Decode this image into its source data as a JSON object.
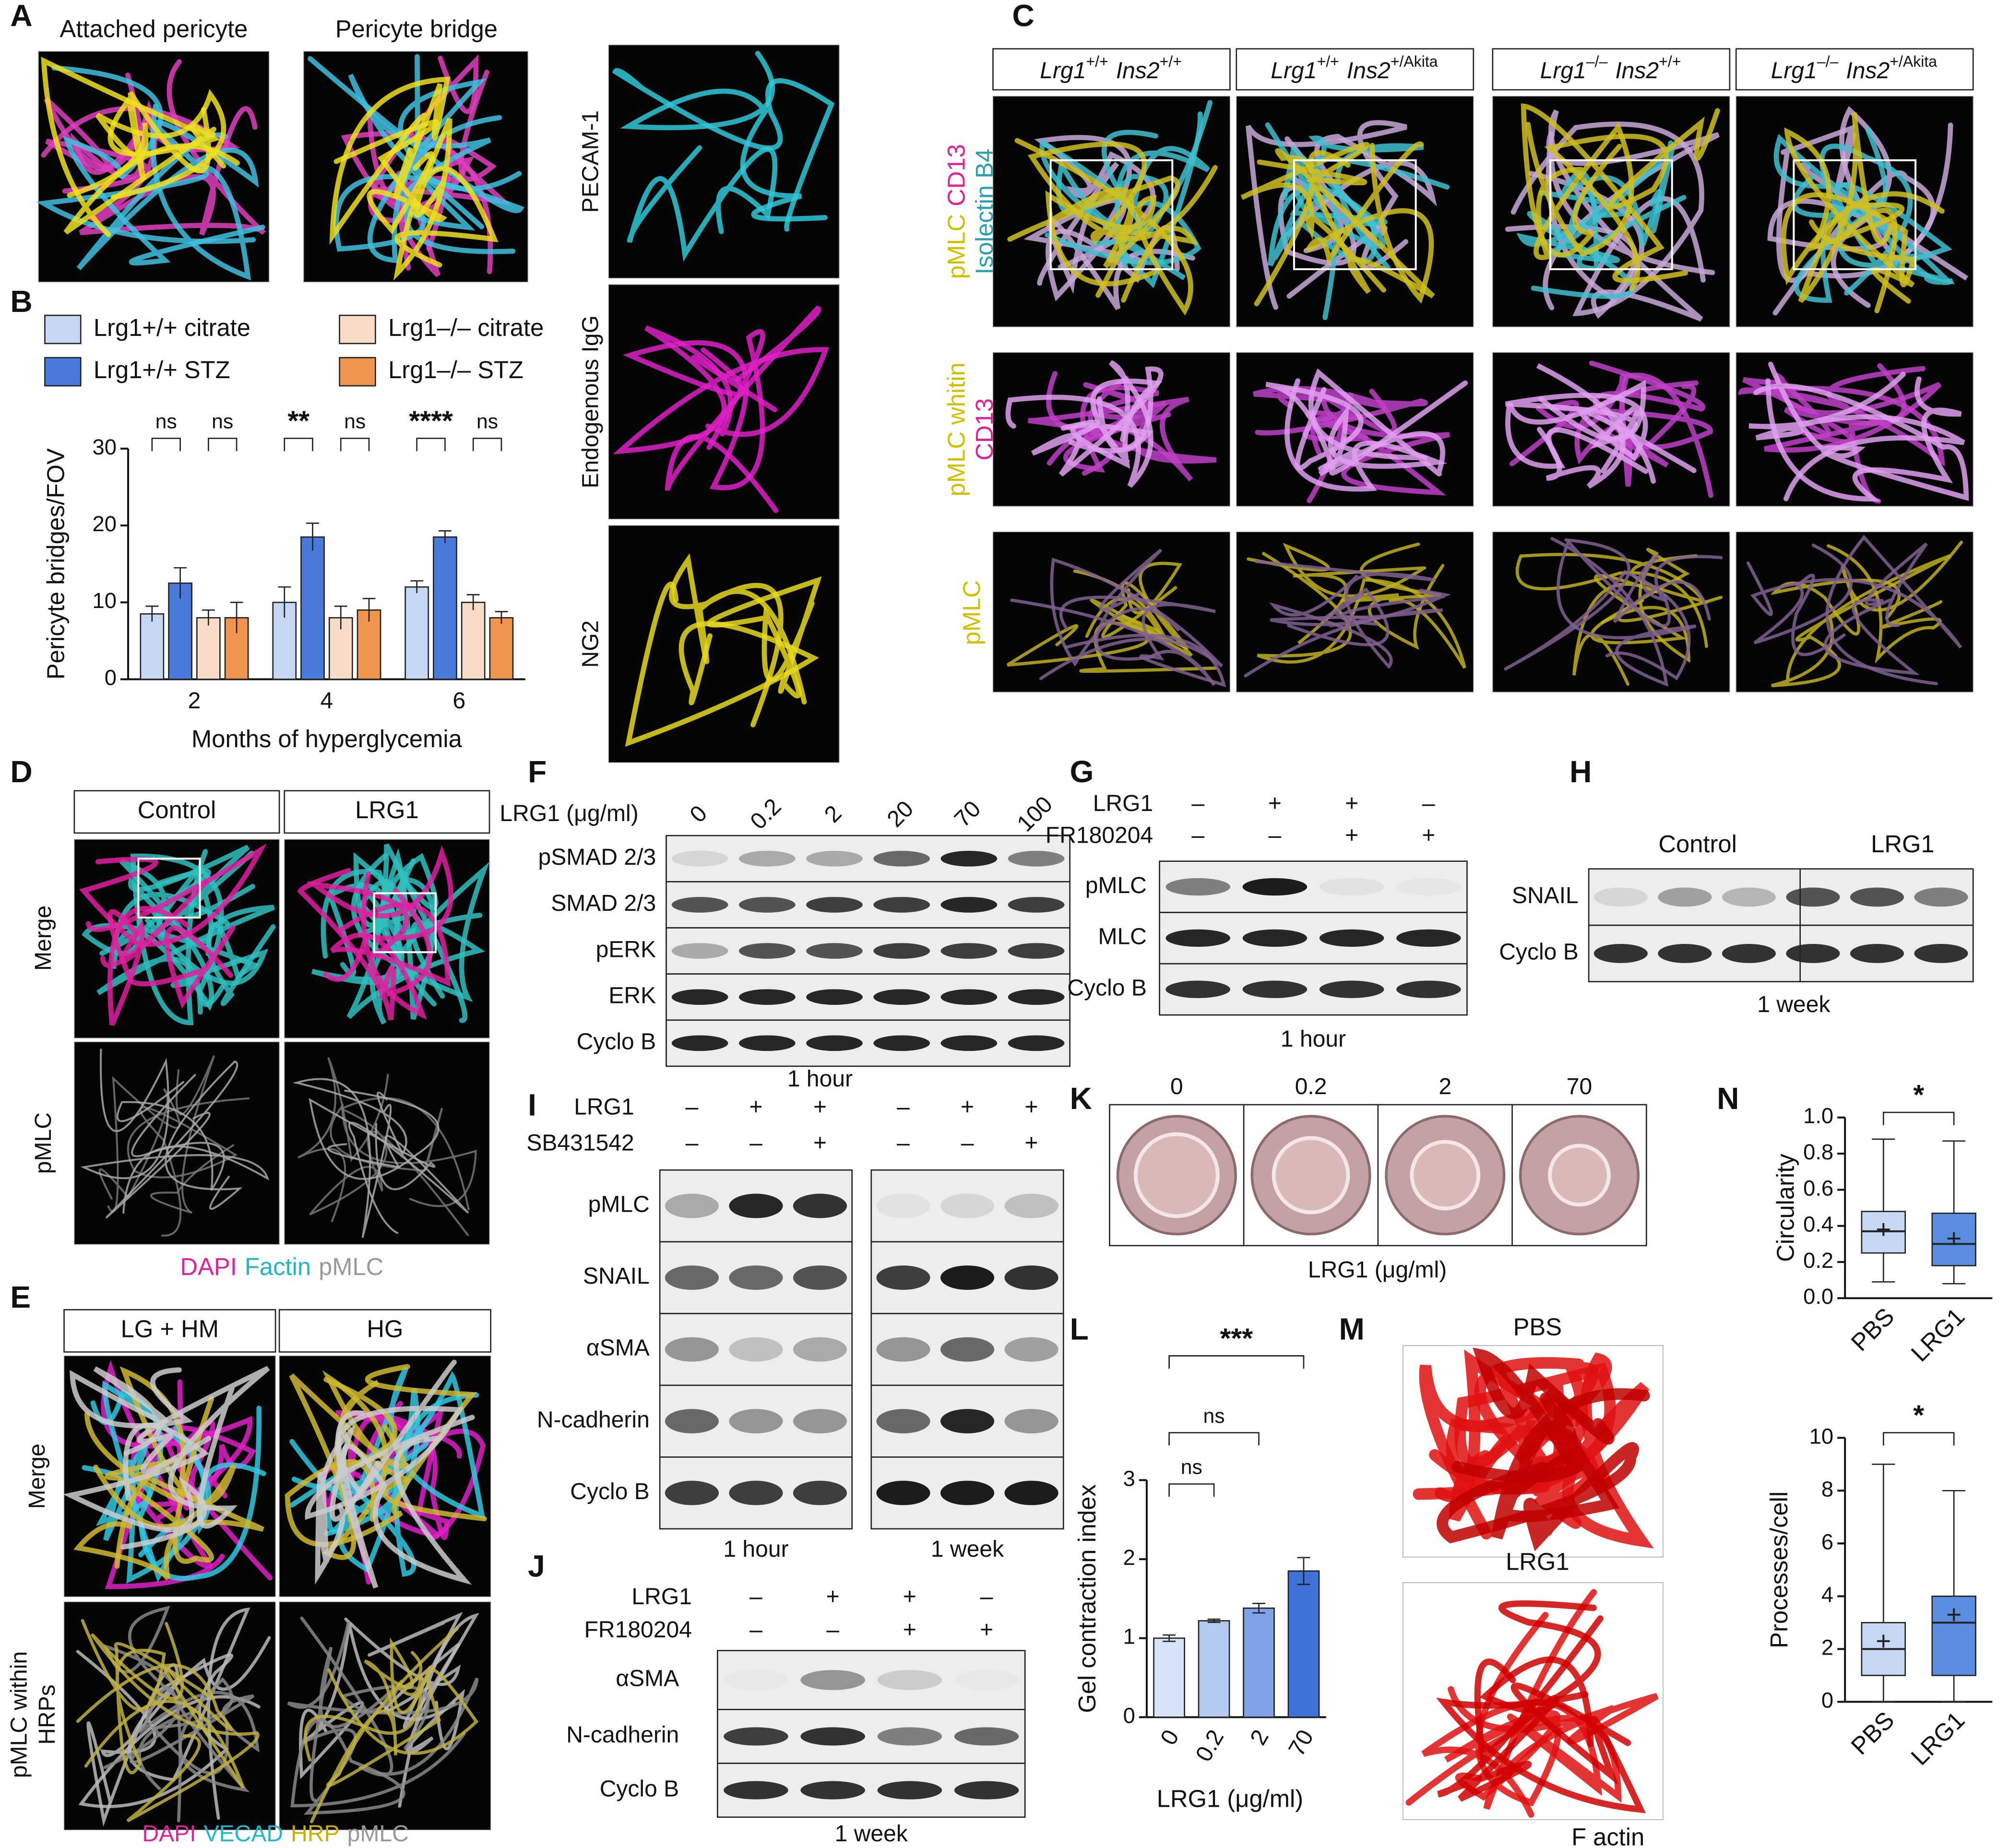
{
  "figure": {
    "A": {
      "label": "A",
      "titles": [
        "Attached pericyte",
        "Pericyte bridge"
      ],
      "channels": [
        "PECAM-1",
        "Endogenous IgG",
        "NG2"
      ]
    },
    "B": {
      "label": "B"
    },
    "C": {
      "label": "C",
      "columns": [
        [
          "Lrg1",
          "+/+",
          "Ins2",
          "+/+"
        ],
        [
          "Lrg1",
          "+/+",
          "Ins2",
          "+/Akita"
        ],
        [
          "Lrg1",
          "–/–",
          "Ins2",
          "+/+"
        ],
        [
          "Lrg1",
          "–/–",
          "Ins2",
          "+/Akita"
        ]
      ],
      "rows": [
        [
          [
            "pMLC",
            "CD13"
          ],
          [
            "Isolectin B4"
          ]
        ],
        [
          [
            "pMLC whitin"
          ],
          [
            "CD13"
          ]
        ],
        [
          [
            "pMLC"
          ]
        ]
      ]
    },
    "D": {
      "label": "D",
      "columns": [
        "Control",
        "LRG1"
      ],
      "rows": [
        [
          "Merge"
        ],
        [
          "pMLC"
        ]
      ],
      "stains": [
        "DAPI",
        "Factin",
        "pMLC"
      ]
    },
    "E": {
      "label": "E",
      "columns": [
        "LG + HM",
        "HG"
      ],
      "rows": [
        [
          "Merge"
        ],
        [
          "pMLC within",
          "HRPs"
        ]
      ],
      "stains": [
        "DAPI",
        "VECAD",
        "HRP",
        "pMLC"
      ]
    },
    "F": {
      "label": "F",
      "treatment": "LRG1 (μg/ml)",
      "doses": [
        "0",
        "0.2",
        "2",
        "20",
        "70",
        "100"
      ],
      "rows": [
        "pSMAD 2/3",
        "SMAD 2/3",
        "pERK",
        "ERK",
        "Cyclo B"
      ],
      "time": "1 hour"
    },
    "G": {
      "label": "G",
      "treatments": [
        "LRG1",
        "FR180204"
      ],
      "signs": [
        [
          "–",
          "+",
          "+",
          "–"
        ],
        [
          "–",
          "–",
          "+",
          "+"
        ]
      ],
      "rows": [
        "pMLC",
        "MLC",
        "Cyclo B"
      ],
      "time": "1 hour"
    },
    "H": {
      "label": "H",
      "groups": [
        "Control",
        "LRG1"
      ],
      "rows": [
        "SNAIL",
        "Cyclo B"
      ],
      "time": "1 week"
    },
    "I": {
      "label": "I",
      "treatments": [
        "LRG1",
        "SB431542"
      ],
      "signs": [
        [
          "–",
          "+",
          "+",
          "–",
          "+",
          "+"
        ],
        [
          "–",
          "–",
          "+",
          "–",
          "–",
          "+"
        ]
      ],
      "rows": [
        "pMLC",
        "SNAIL",
        "αSMA",
        "N-cadherin",
        "Cyclo B"
      ],
      "times": [
        "1 hour",
        "1 week"
      ]
    },
    "J": {
      "label": "J",
      "treatments": [
        "LRG1",
        "FR180204"
      ],
      "signs": [
        [
          "–",
          "+",
          "+",
          "–"
        ],
        [
          "–",
          "–",
          "+",
          "+"
        ]
      ],
      "rows": [
        "αSMA",
        "N-cadherin",
        "Cyclo B"
      ],
      "time": "1 week"
    },
    "K": {
      "label": "K",
      "doses": [
        "0",
        "0.2",
        "2",
        "70"
      ],
      "treatment": "LRG1 (μg/ml)"
    },
    "L": {
      "label": "L"
    },
    "M": {
      "label": "M",
      "conditions": [
        "PBS",
        "LRG1"
      ],
      "stain": "F actin"
    },
    "N": {
      "label": "N"
    }
  },
  "chart_data": [
    {
      "type": "bar",
      "xlabel": "Months of hyperglycemia",
      "ylabel": "Pericyte bridges/FOV",
      "categories": [
        "2",
        "4",
        "6"
      ],
      "series": [
        {
          "name": "Lrg1+/+ citrate",
          "color": "#c6d7f3",
          "values": [
            8.5,
            10,
            12
          ],
          "errors": [
            1,
            2,
            0.8
          ]
        },
        {
          "name": "Lrg1+/+ STZ",
          "color": "#4a7bdc",
          "values": [
            12.5,
            18.5,
            18.5
          ],
          "errors": [
            2,
            1.8,
            0.8
          ]
        },
        {
          "name": "Lrg1–/– citrate",
          "color": "#f9dcc8",
          "values": [
            8,
            8,
            10
          ],
          "errors": [
            1,
            1.5,
            1
          ]
        },
        {
          "name": "Lrg1–/– STZ",
          "color": "#ef9550",
          "values": [
            8,
            9,
            8
          ],
          "errors": [
            2,
            1.5,
            0.8
          ]
        }
      ],
      "ylim": [
        0,
        30
      ],
      "yticks": [
        0,
        10,
        20,
        30
      ],
      "significance": [
        "ns",
        "ns",
        "**",
        "ns",
        "****",
        "ns"
      ]
    },
    {
      "type": "bar",
      "xlabel": "LRG1 (μg/ml)",
      "ylabel": "Gel contraction index",
      "categories": [
        "0",
        "0.2",
        "2",
        "70"
      ],
      "values": [
        1.0,
        1.22,
        1.38,
        1.85
      ],
      "errors": [
        0.04,
        0.02,
        0.06,
        0.17
      ],
      "colors": [
        "#d6e2f7",
        "#b3c9f0",
        "#7fa3e6",
        "#3f72d6"
      ],
      "ylim": [
        0,
        3
      ],
      "yticks": [
        0,
        1,
        2,
        3
      ],
      "significance": [
        "***",
        "ns",
        "ns"
      ]
    },
    {
      "type": "box",
      "ylabel": "Circularity",
      "categories": [
        "PBS",
        "LRG1"
      ],
      "boxes": [
        {
          "color": "#c6d7f3",
          "min": 0.09,
          "q1": 0.25,
          "median": 0.37,
          "q3": 0.48,
          "max": 0.88,
          "mean": 0.38
        },
        {
          "color": "#5b8de0",
          "min": 0.08,
          "q1": 0.18,
          "median": 0.3,
          "q3": 0.47,
          "max": 0.87,
          "mean": 0.33
        }
      ],
      "ylim": [
        0,
        1
      ],
      "yticks": [
        {
          "value": 0,
          "label": "0.0"
        },
        0.2,
        0.4,
        0.6,
        0.8,
        {
          "value": 1,
          "label": "1.0"
        }
      ],
      "significance": [
        "*"
      ]
    },
    {
      "type": "box",
      "ylabel": "Processes/cell",
      "categories": [
        "PBS",
        "LRG1"
      ],
      "boxes": [
        {
          "color": "#c6d7f3",
          "min": 0,
          "q1": 1,
          "median": 2,
          "q3": 3,
          "max": 9,
          "mean": 2.3
        },
        {
          "color": "#5b8de0",
          "min": 0,
          "q1": 1,
          "median": 3,
          "q3": 4,
          "max": 8,
          "mean": 3.3
        }
      ],
      "ylim": [
        0,
        10
      ],
      "yticks": [
        0,
        2,
        4,
        6,
        8,
        10
      ],
      "significance": [
        "*"
      ]
    }
  ]
}
